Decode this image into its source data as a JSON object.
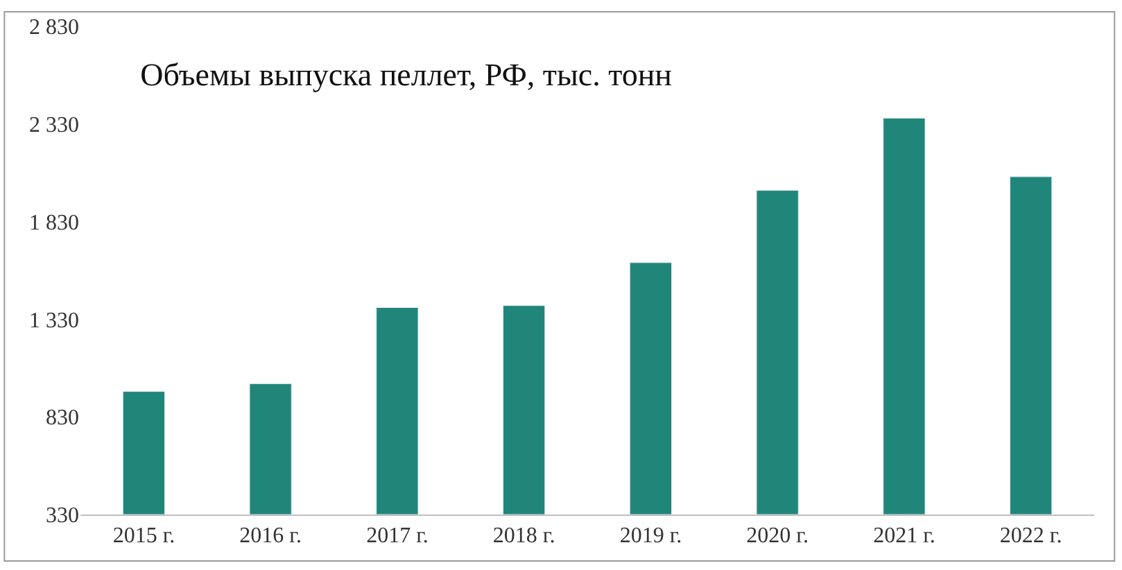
{
  "chart_data": {
    "type": "bar",
    "title": "Объемы выпуска пеллет, РФ, тыс. тонн",
    "categories": [
      "2015 г.",
      "2016 г.",
      "2017 г.",
      "2018 г.",
      "2019 г.",
      "2020 г.",
      "2021 г.",
      "2022 г."
    ],
    "values": [
      960,
      1000,
      1390,
      1400,
      1620,
      1990,
      2360,
      2060
    ],
    "color": "#21867a",
    "ylim": [
      330,
      2830
    ],
    "yticks": [
      {
        "value": 330,
        "label": "330"
      },
      {
        "value": 830,
        "label": "830"
      },
      {
        "value": 1330,
        "label": "1 330"
      },
      {
        "value": 1830,
        "label": "1 830"
      },
      {
        "value": 2330,
        "label": "2 330"
      },
      {
        "value": 2830,
        "label": "2 830"
      }
    ]
  }
}
